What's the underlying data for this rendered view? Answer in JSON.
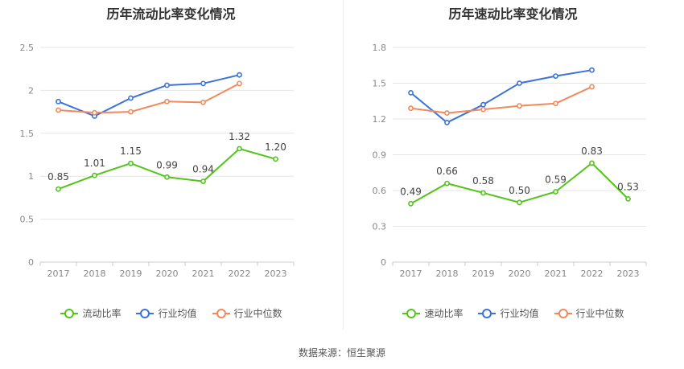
{
  "chart_data": [
    {
      "type": "line",
      "title": "历年流动比率变化情况",
      "categories": [
        "2017",
        "2018",
        "2019",
        "2020",
        "2021",
        "2022",
        "2023"
      ],
      "ylim": [
        0,
        2.5
      ],
      "yticks": [
        0,
        0.5,
        1,
        1.5,
        2,
        2.5
      ],
      "ytick_labels": [
        "0",
        "0.5",
        "1",
        "1.5",
        "2",
        "2.5"
      ],
      "grid": true,
      "legend": "bottom-center",
      "series": [
        {
          "name": "流动比率",
          "color": "#52c41a",
          "values": [
            0.85,
            1.01,
            1.15,
            0.99,
            0.94,
            1.32,
            1.2
          ],
          "labels": [
            "0.85",
            "1.01",
            "1.15",
            "0.99",
            "0.94",
            "1.32",
            "1.20"
          ]
        },
        {
          "name": "行业均值",
          "color": "#3b73d9",
          "values": [
            1.87,
            1.7,
            1.91,
            2.06,
            2.08,
            2.18,
            null
          ]
        },
        {
          "name": "行业中位数",
          "color": "#f08a5d",
          "values": [
            1.77,
            1.74,
            1.75,
            1.87,
            1.86,
            2.08,
            null
          ]
        }
      ]
    },
    {
      "type": "line",
      "title": "历年速动比率变化情况",
      "categories": [
        "2017",
        "2018",
        "2019",
        "2020",
        "2021",
        "2022",
        "2023"
      ],
      "ylim": [
        0,
        1.8
      ],
      "yticks": [
        0,
        0.3,
        0.6,
        0.9,
        1.2,
        1.5,
        1.8
      ],
      "ytick_labels": [
        "0",
        "0.3",
        "0.6",
        "0.9",
        "1.2",
        "1.5",
        "1.8"
      ],
      "grid": true,
      "legend": "bottom-center",
      "series": [
        {
          "name": "速动比率",
          "color": "#52c41a",
          "values": [
            0.49,
            0.66,
            0.58,
            0.5,
            0.59,
            0.83,
            0.53
          ],
          "labels": [
            "0.49",
            "0.66",
            "0.58",
            "0.50",
            "0.59",
            "0.83",
            "0.53"
          ]
        },
        {
          "name": "行业均值",
          "color": "#3b73d9",
          "values": [
            1.42,
            1.17,
            1.32,
            1.5,
            1.56,
            1.61,
            null
          ]
        },
        {
          "name": "行业中位数",
          "color": "#f08a5d",
          "values": [
            1.29,
            1.25,
            1.28,
            1.31,
            1.33,
            1.47,
            null
          ]
        }
      ]
    }
  ],
  "source_text": "数据来源：恒生聚源"
}
